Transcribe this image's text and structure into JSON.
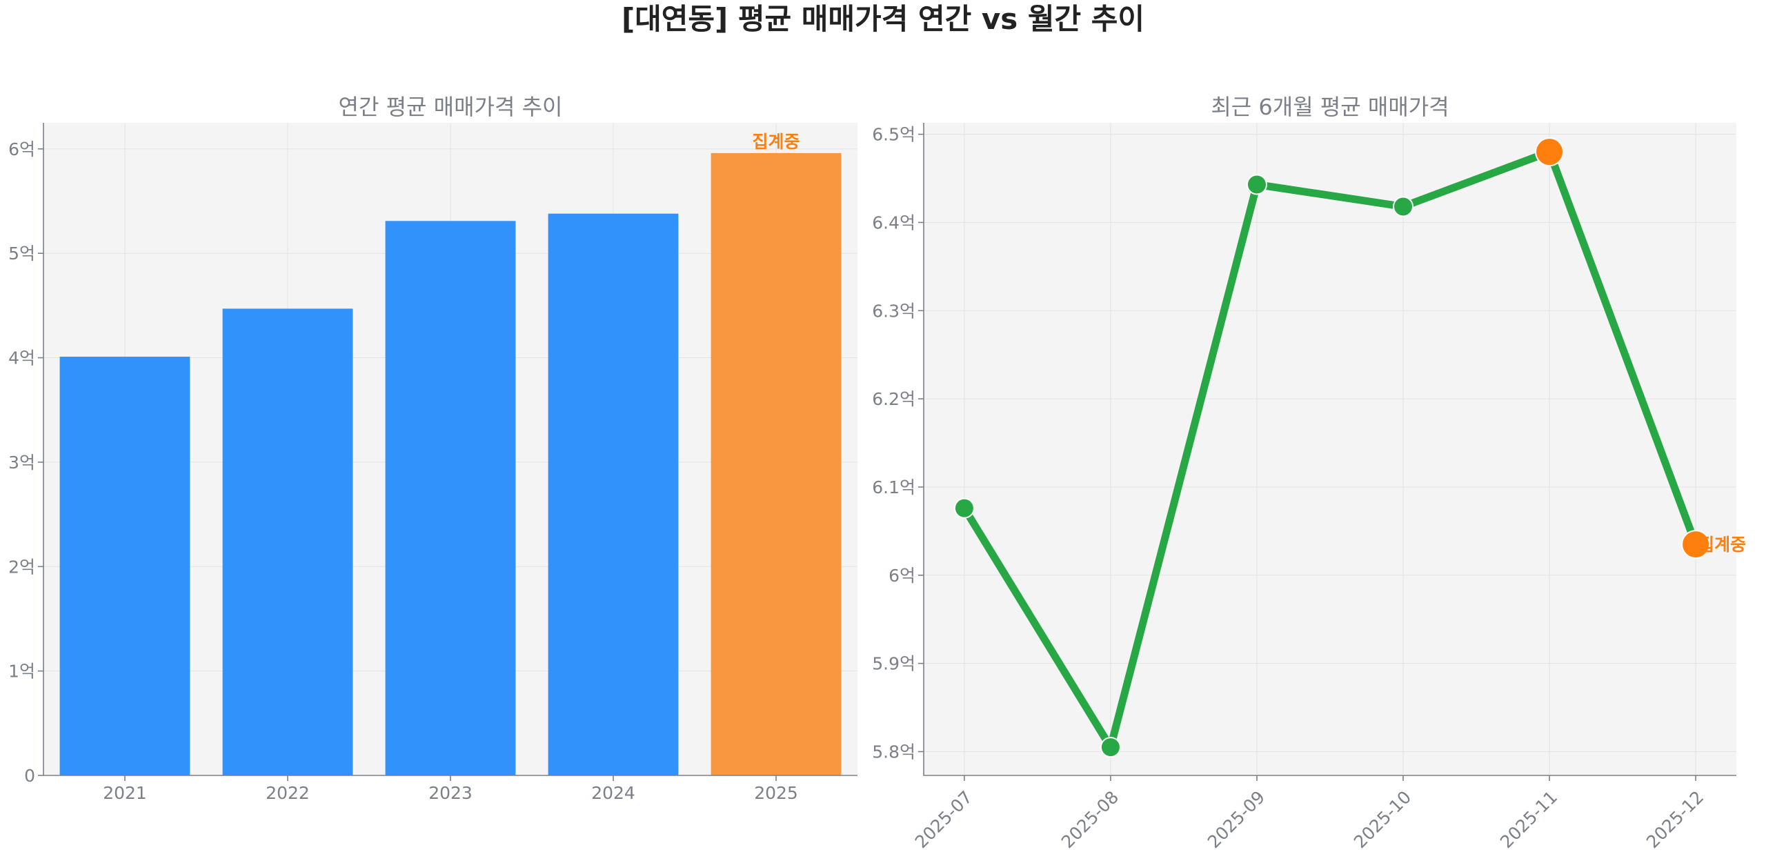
{
  "title": "[대연동] 평균 매매가격 연간 vs 월간 추이",
  "colors": {
    "bar_complete": "#3292fc",
    "bar_pending": "#f99740",
    "line": "#28a745",
    "marker_highlight": "#ff7f0e",
    "pending_label": "#ff7f0e",
    "panel_background": "#f4f4f4"
  },
  "chart_data": [
    {
      "type": "bar",
      "title": "연간 평균 매매가격 추이",
      "categories": [
        "2021",
        "2022",
        "2023",
        "2024",
        "2025"
      ],
      "values": [
        4.01,
        4.47,
        5.31,
        5.38,
        5.96
      ],
      "unit": "억",
      "ylim": [
        0,
        6.25
      ],
      "yticks": [
        0,
        1,
        2,
        3,
        4,
        5,
        6
      ],
      "ytick_labels": [
        "0",
        "1억",
        "2억",
        "3억",
        "4억",
        "5억",
        "6억"
      ],
      "pending": [
        false,
        false,
        false,
        false,
        true
      ],
      "pending_label": "집계중",
      "grid": true
    },
    {
      "type": "line",
      "title": "최근 6개월 평균 매매가격",
      "x": [
        "2025-07",
        "2025-08",
        "2025-09",
        "2025-10",
        "2025-11",
        "2025-12"
      ],
      "values": [
        6.076,
        5.805,
        6.443,
        6.418,
        6.48,
        6.035
      ],
      "unit": "억",
      "ylim": [
        5.773,
        6.513
      ],
      "yticks": [
        5.8,
        5.9,
        6.0,
        6.1,
        6.2,
        6.3,
        6.4,
        6.5
      ],
      "ytick_labels": [
        "5.8억",
        "5.9억",
        "6억",
        "6.1억",
        "6.2억",
        "6.3억",
        "6.4억",
        "6.5억"
      ],
      "highlight": [
        false,
        false,
        false,
        false,
        true,
        true
      ],
      "pending": [
        false,
        false,
        false,
        false,
        false,
        true
      ],
      "pending_label": "집계중",
      "grid": true
    }
  ]
}
